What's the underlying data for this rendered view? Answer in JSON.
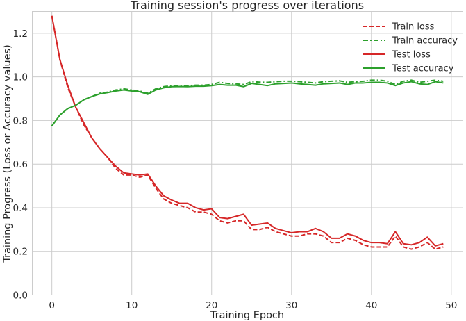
{
  "chart_data": {
    "type": "line",
    "title": "Training session's progress over iterations",
    "xlabel": "Training Epoch",
    "ylabel": "Training Progress (Loss or Accuracy values)",
    "xlim": [
      -2.45,
      51.45
    ],
    "ylim": [
      0.0,
      1.3
    ],
    "xticks": [
      0,
      10,
      20,
      30,
      40,
      50
    ],
    "yticks": [
      0.0,
      0.2,
      0.4,
      0.6,
      0.8,
      1.0,
      1.2
    ],
    "grid": true,
    "legend_position": "top-right",
    "x": [
      0,
      1,
      2,
      3,
      4,
      5,
      6,
      7,
      8,
      9,
      10,
      11,
      12,
      13,
      14,
      15,
      16,
      17,
      18,
      19,
      20,
      21,
      22,
      23,
      24,
      25,
      26,
      27,
      28,
      29,
      30,
      31,
      32,
      33,
      34,
      35,
      36,
      37,
      38,
      39,
      40,
      41,
      42,
      43,
      44,
      45,
      46,
      47,
      48,
      49
    ],
    "series": [
      {
        "name": "Train loss",
        "color": "#d62728",
        "dash": "dashed",
        "values": [
          1.28,
          1.08,
          0.95,
          0.86,
          0.78,
          0.72,
          0.67,
          0.63,
          0.58,
          0.55,
          0.55,
          0.54,
          0.55,
          0.49,
          0.44,
          0.42,
          0.41,
          0.4,
          0.38,
          0.38,
          0.37,
          0.34,
          0.33,
          0.34,
          0.34,
          0.3,
          0.3,
          0.31,
          0.29,
          0.28,
          0.27,
          0.27,
          0.28,
          0.28,
          0.27,
          0.24,
          0.24,
          0.26,
          0.25,
          0.23,
          0.22,
          0.22,
          0.22,
          0.27,
          0.22,
          0.21,
          0.22,
          0.24,
          0.21,
          0.22
        ]
      },
      {
        "name": "Train accuracy",
        "color": "#2ca02c",
        "dash": "dashdot",
        "values": [
          0.775,
          0.825,
          0.855,
          0.87,
          0.895,
          0.91,
          0.925,
          0.93,
          0.94,
          0.945,
          0.94,
          0.935,
          0.925,
          0.945,
          0.955,
          0.96,
          0.96,
          0.96,
          0.962,
          0.962,
          0.965,
          0.975,
          0.97,
          0.968,
          0.965,
          0.978,
          0.976,
          0.975,
          0.978,
          0.98,
          0.98,
          0.978,
          0.975,
          0.972,
          0.978,
          0.98,
          0.982,
          0.975,
          0.978,
          0.98,
          0.985,
          0.985,
          0.98,
          0.965,
          0.98,
          0.985,
          0.975,
          0.98,
          0.985,
          0.98
        ]
      },
      {
        "name": "Test loss",
        "color": "#d62728",
        "dash": "solid",
        "values": [
          1.28,
          1.08,
          0.96,
          0.86,
          0.79,
          0.72,
          0.67,
          0.63,
          0.59,
          0.56,
          0.555,
          0.55,
          0.555,
          0.5,
          0.455,
          0.435,
          0.42,
          0.42,
          0.4,
          0.39,
          0.395,
          0.355,
          0.35,
          0.36,
          0.37,
          0.32,
          0.325,
          0.33,
          0.305,
          0.295,
          0.285,
          0.29,
          0.29,
          0.305,
          0.29,
          0.26,
          0.26,
          0.28,
          0.27,
          0.25,
          0.24,
          0.24,
          0.235,
          0.29,
          0.235,
          0.23,
          0.24,
          0.265,
          0.225,
          0.235
        ]
      },
      {
        "name": "Test accuracy",
        "color": "#2ca02c",
        "dash": "solid",
        "values": [
          0.775,
          0.825,
          0.855,
          0.87,
          0.895,
          0.91,
          0.922,
          0.928,
          0.935,
          0.94,
          0.935,
          0.932,
          0.92,
          0.94,
          0.95,
          0.955,
          0.956,
          0.955,
          0.957,
          0.957,
          0.96,
          0.965,
          0.962,
          0.962,
          0.955,
          0.97,
          0.965,
          0.96,
          0.968,
          0.97,
          0.972,
          0.968,
          0.965,
          0.962,
          0.968,
          0.97,
          0.972,
          0.965,
          0.972,
          0.972,
          0.975,
          0.975,
          0.972,
          0.96,
          0.972,
          0.978,
          0.968,
          0.965,
          0.978,
          0.972
        ]
      }
    ]
  }
}
